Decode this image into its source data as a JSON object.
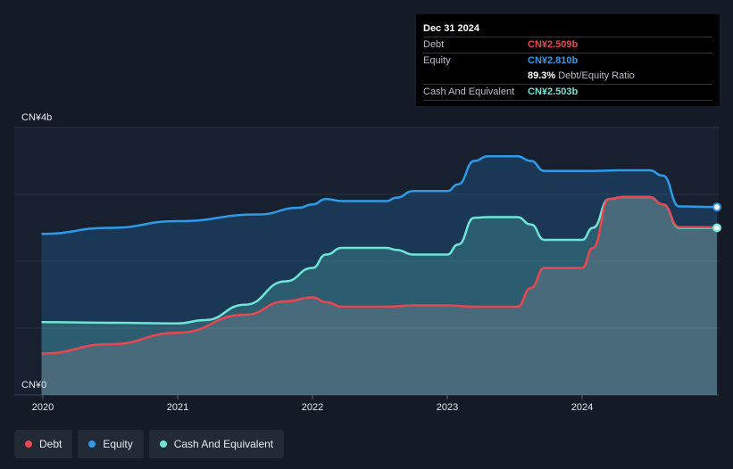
{
  "tooltip": {
    "date": "Dec 31 2024",
    "rows": [
      {
        "label": "Debt",
        "value": "CN¥2.509b",
        "color": "#e8474f"
      },
      {
        "label": "Equity",
        "value": "CN¥2.810b",
        "color": "#2e9be9"
      },
      {
        "label": "",
        "value": "89.3%",
        "sub": "Debt/Equity Ratio",
        "color": "#ffffff"
      },
      {
        "label": "Cash And Equivalent",
        "value": "CN¥2.503b",
        "color": "#6ee6d6"
      }
    ]
  },
  "legend": [
    {
      "label": "Debt",
      "color": "#e8474f"
    },
    {
      "label": "Equity",
      "color": "#2e9be9"
    },
    {
      "label": "Cash And Equivalent",
      "color": "#6ee6d6"
    }
  ],
  "chart_data": {
    "type": "area",
    "y_unit": "CN¥ billions",
    "ylim": [
      0,
      4
    ],
    "y_tick_labels": [
      "CN¥0",
      "CN¥4b"
    ],
    "x_tick_labels": [
      "2020",
      "2021",
      "2022",
      "2023",
      "2024"
    ],
    "xlim": [
      2019.99,
      2025.0
    ],
    "grid": true,
    "legend_position": "bottom-left",
    "series": [
      {
        "name": "Equity",
        "color": "#2e9be9",
        "x": [
          2019.99,
          2020.5,
          2021.0,
          2021.6,
          2021.9,
          2022.0,
          2022.1,
          2022.22,
          2022.55,
          2022.62,
          2022.75,
          2023.0,
          2023.08,
          2023.2,
          2023.3,
          2023.52,
          2023.62,
          2023.72,
          2024.05,
          2024.3,
          2024.5,
          2024.6,
          2024.72,
          2025.0
        ],
        "y": [
          2.41,
          2.5,
          2.6,
          2.7,
          2.8,
          2.85,
          2.93,
          2.9,
          2.9,
          2.95,
          3.05,
          3.05,
          3.15,
          3.5,
          3.57,
          3.57,
          3.5,
          3.35,
          3.35,
          3.36,
          3.36,
          3.28,
          2.82,
          2.81
        ]
      },
      {
        "name": "Cash And Equivalent",
        "color": "#6ee6d6",
        "x": [
          2019.99,
          2020.5,
          2021.0,
          2021.2,
          2021.5,
          2021.8,
          2022.0,
          2022.1,
          2022.22,
          2022.55,
          2022.62,
          2022.75,
          2023.0,
          2023.08,
          2023.2,
          2023.3,
          2023.52,
          2023.62,
          2023.72,
          2024.0,
          2024.08,
          2024.2,
          2024.3,
          2024.5,
          2024.6,
          2024.72,
          2025.0
        ],
        "y": [
          1.09,
          1.08,
          1.07,
          1.12,
          1.35,
          1.7,
          1.9,
          2.1,
          2.2,
          2.2,
          2.17,
          2.1,
          2.1,
          2.25,
          2.65,
          2.66,
          2.66,
          2.55,
          2.32,
          2.32,
          2.5,
          2.93,
          2.96,
          2.96,
          2.85,
          2.5,
          2.5
        ]
      },
      {
        "name": "Debt",
        "color": "#e8474f",
        "x": [
          2019.99,
          2020.5,
          2021.0,
          2021.5,
          2021.8,
          2022.0,
          2022.1,
          2022.22,
          2022.55,
          2022.75,
          2023.0,
          2023.2,
          2023.52,
          2023.62,
          2023.72,
          2024.0,
          2024.08,
          2024.2,
          2024.3,
          2024.5,
          2024.6,
          2024.72,
          2025.0
        ],
        "y": [
          0.62,
          0.76,
          0.93,
          1.2,
          1.4,
          1.46,
          1.39,
          1.32,
          1.32,
          1.34,
          1.34,
          1.32,
          1.32,
          1.6,
          1.9,
          1.9,
          2.2,
          2.93,
          2.96,
          2.96,
          2.85,
          2.51,
          2.509
        ]
      }
    ]
  }
}
